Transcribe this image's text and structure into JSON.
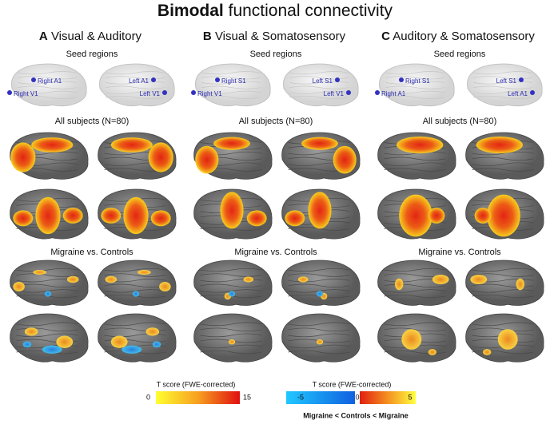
{
  "title": {
    "bold": "Bimodal",
    "rest": "functional connectivity"
  },
  "panels": [
    {
      "letter": "A",
      "name": "Visual & Auditory",
      "seed_heading": "Seed regions",
      "seeds": [
        "Right A1",
        "Right V1",
        "Left A1",
        "Left V1"
      ],
      "all_heading": "All subjects (N=80)",
      "contrast_heading": "Migraine vs. Controls"
    },
    {
      "letter": "B",
      "name": "Visual & Somatosensory",
      "seed_heading": "Seed regions",
      "seeds": [
        "Right S1",
        "Right V1",
        "Left S1",
        "Left V1"
      ],
      "all_heading": "All subjects (N=80)",
      "contrast_heading": "Migraine vs. Controls"
    },
    {
      "letter": "C",
      "name": "Auditory & Somatosensory",
      "seed_heading": "Seed regions",
      "seeds": [
        "Right S1",
        "Right A1",
        "Left S1",
        "Left A1"
      ],
      "all_heading": "All subjects (N=80)",
      "contrast_heading": "Migraine vs. Controls"
    }
  ],
  "legends": [
    {
      "title": "T score (FWE-corrected)",
      "ticks": [
        0,
        15
      ]
    },
    {
      "title": "T score (FWE-corrected)",
      "ticks": [
        -5,
        0,
        5
      ],
      "caption": "Migraine < Controls < Migraine"
    }
  ]
}
